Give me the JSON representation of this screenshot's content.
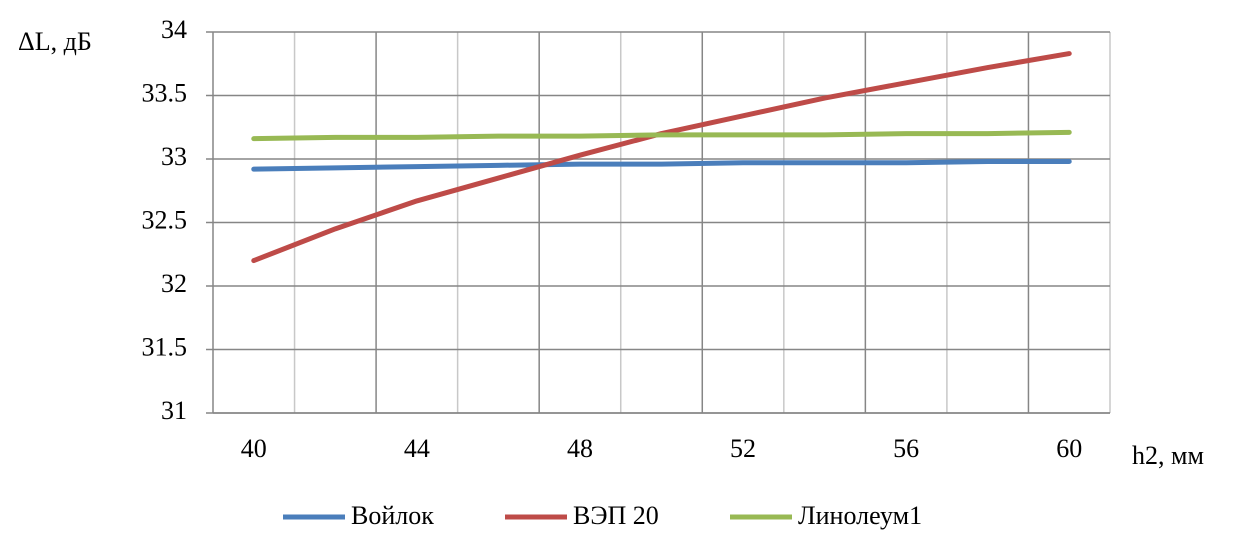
{
  "chart_data": {
    "type": "line",
    "y_label": "ΔL, дБ",
    "x_label": "h2, мм",
    "categories": [
      "40",
      null,
      "44",
      null,
      "48",
      null,
      "52",
      null,
      "56",
      null,
      "60"
    ],
    "series": [
      {
        "name": "Войлок",
        "color": "#4a7ebb",
        "values": [
          32.92,
          32.93,
          32.94,
          32.95,
          32.96,
          32.96,
          32.97,
          32.97,
          32.97,
          32.98,
          32.98
        ]
      },
      {
        "name": "ВЭП 20",
        "color": "#be4b48",
        "values": [
          32.2,
          32.45,
          32.67,
          32.85,
          33.03,
          33.2,
          33.34,
          33.48,
          33.6,
          33.72,
          33.83
        ]
      },
      {
        "name": "Линолеум1",
        "color": "#98b954",
        "values": [
          33.16,
          33.17,
          33.17,
          33.18,
          33.18,
          33.19,
          33.19,
          33.19,
          33.2,
          33.2,
          33.21
        ]
      }
    ],
    "ylim": [
      31,
      34
    ],
    "yticks": [
      31,
      31.5,
      32,
      32.5,
      33,
      33.5,
      34
    ],
    "grid": true,
    "legend": "bottom"
  }
}
